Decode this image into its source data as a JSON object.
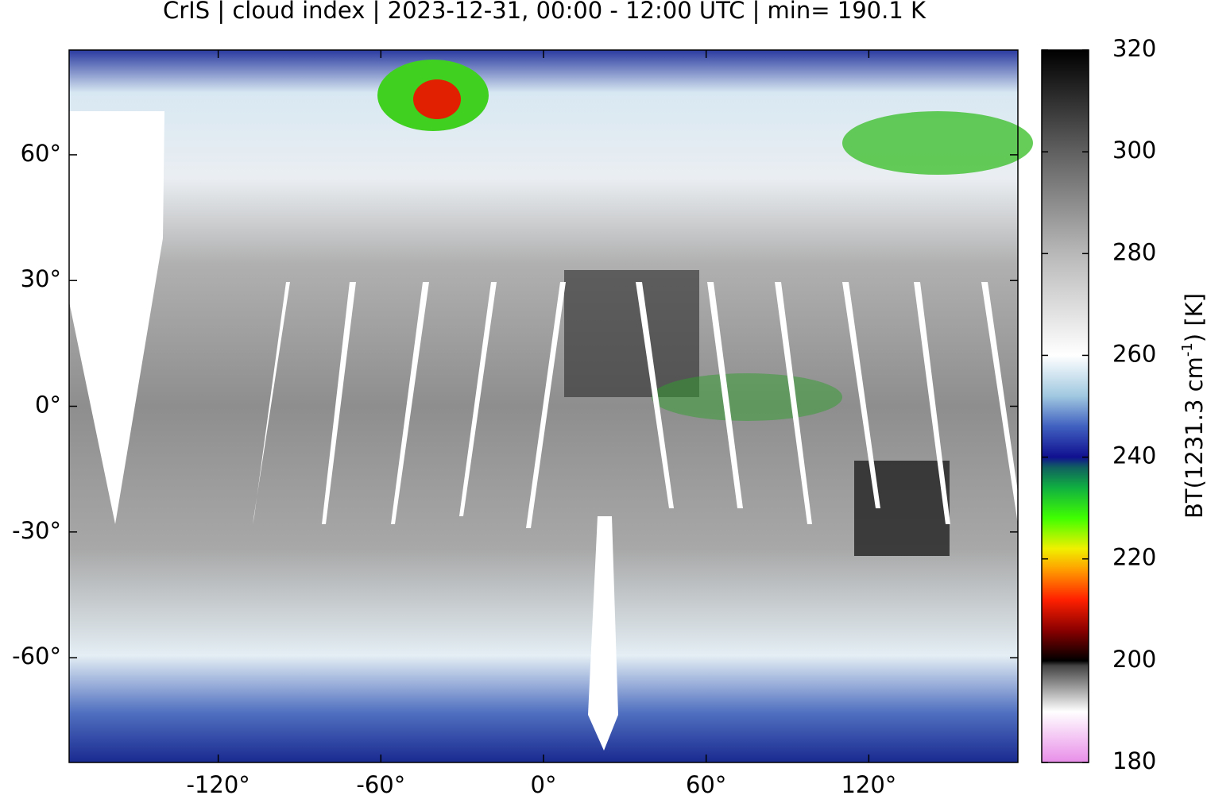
{
  "chart_data": {
    "type": "map",
    "title": "CrIS | cloud index | 2023-12-31, 00:00 - 12:00 UTC | min= 190.1 K",
    "xlim": [
      -175,
      175
    ],
    "ylim": [
      -85,
      85
    ],
    "xticks": [
      {
        "value": -120,
        "label": "-120°"
      },
      {
        "value": -60,
        "label": "-60°"
      },
      {
        "value": 0,
        "label": "0°"
      },
      {
        "value": 60,
        "label": "60°"
      },
      {
        "value": 120,
        "label": "120°"
      }
    ],
    "yticks": [
      {
        "value": 60,
        "label": "60°"
      },
      {
        "value": 30,
        "label": "30°"
      },
      {
        "value": 0,
        "label": "0°"
      },
      {
        "value": -30,
        "label": "-30°"
      },
      {
        "value": -60,
        "label": "-60°"
      }
    ],
    "colorbar": {
      "lim": [
        180,
        320
      ],
      "ticks": [
        180,
        200,
        220,
        240,
        260,
        280,
        300,
        320
      ],
      "label": [
        "BT(1231.3 cm",
        "-1",
        ") [K]"
      ],
      "colormap": [
        {
          "value": 180,
          "color": "#e88ee8"
        },
        {
          "value": 190,
          "color": "#ffffff"
        },
        {
          "value": 199,
          "color": "#444444"
        },
        {
          "value": 200,
          "color": "#000000"
        },
        {
          "value": 206,
          "color": "#8b0000"
        },
        {
          "value": 212,
          "color": "#ff2000"
        },
        {
          "value": 218,
          "color": "#ffa000"
        },
        {
          "value": 222,
          "color": "#f0f000"
        },
        {
          "value": 228,
          "color": "#40ff00"
        },
        {
          "value": 234,
          "color": "#10b040"
        },
        {
          "value": 238,
          "color": "#106060"
        },
        {
          "value": 240,
          "color": "#101090"
        },
        {
          "value": 246,
          "color": "#4060c0"
        },
        {
          "value": 252,
          "color": "#a0c8e0"
        },
        {
          "value": 260,
          "color": "#ffffff"
        },
        {
          "value": 280,
          "color": "#b8b8b8"
        },
        {
          "value": 300,
          "color": "#606060"
        },
        {
          "value": 320,
          "color": "#000000"
        }
      ]
    }
  }
}
